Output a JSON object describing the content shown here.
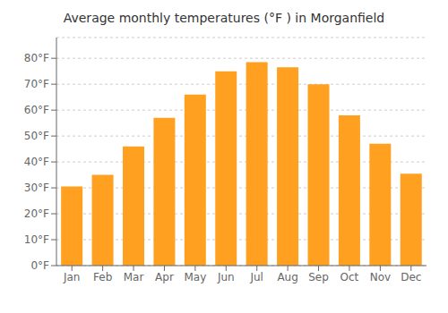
{
  "chart_data": {
    "type": "bar",
    "title": "Average monthly temperatures (°F ) in Morganfield",
    "categories": [
      "Jan",
      "Feb",
      "Mar",
      "Apr",
      "May",
      "Jun",
      "Jul",
      "Aug",
      "Sep",
      "Oct",
      "Nov",
      "Dec"
    ],
    "values": [
      30.5,
      35.0,
      46.0,
      57.0,
      66.0,
      75.0,
      78.5,
      76.5,
      70.0,
      58.0,
      47.0,
      35.5
    ],
    "color": "#FFA020",
    "ylim": [
      0,
      88
    ],
    "yticks": [
      {
        "value": 0,
        "label": "0°F"
      },
      {
        "value": 10,
        "label": "10°F"
      },
      {
        "value": 20,
        "label": "20°F"
      },
      {
        "value": 30,
        "label": "30°F"
      },
      {
        "value": 40,
        "label": "40°F"
      },
      {
        "value": 50,
        "label": "50°F"
      },
      {
        "value": 60,
        "label": "60°F"
      },
      {
        "value": 70,
        "label": "70°F"
      },
      {
        "value": 80,
        "label": "80°F"
      }
    ],
    "grid": true
  }
}
